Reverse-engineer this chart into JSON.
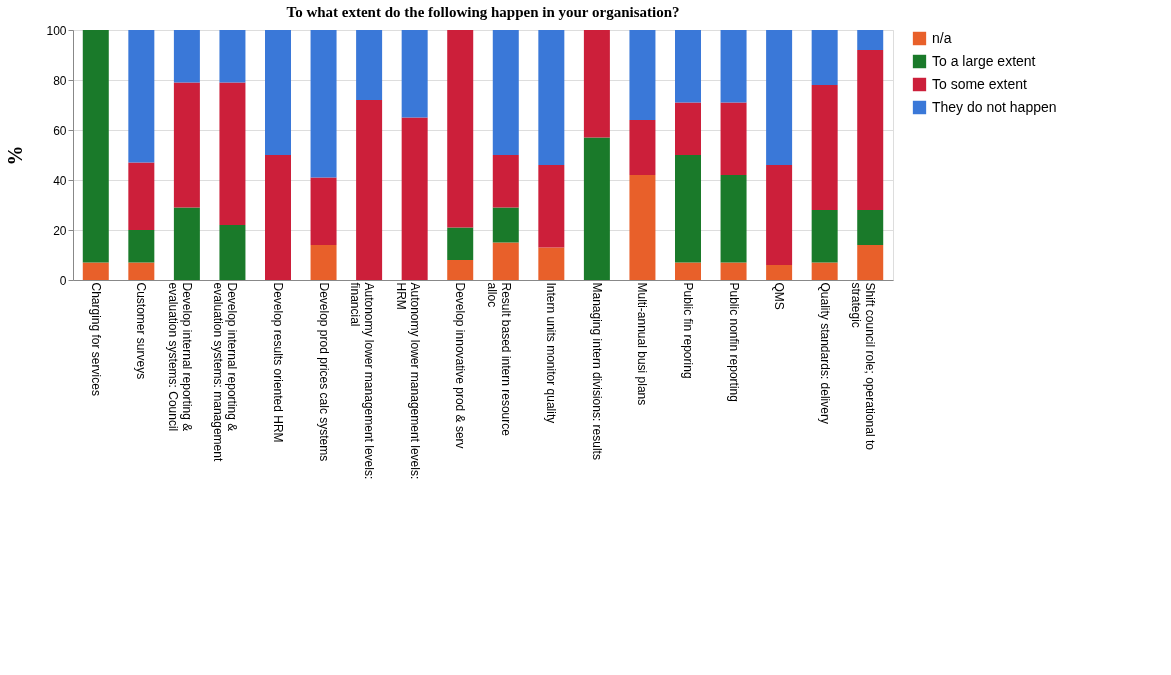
{
  "chart_data": {
    "type": "bar",
    "title": "To what extent do the following happen in your organisation?",
    "ylabel": "%",
    "stacked": true,
    "categories": [
      "Charging for services",
      "Customer surveys",
      "Develop internal reporting & evaluation systems: Council",
      "Develop internal reporting & evaluation systems: management",
      "Develop results oriented HRM",
      "Develop prod prices calc systems",
      "Autonomy lower management levels: financial",
      "Autonomy lower management levels: HRM",
      "Develop innovative prod & serv",
      "Result based intern resource alloc",
      "Intern units monitor quality",
      "Managing intern divisions: results",
      "Multi-annual busi plans",
      "Public fin reporing",
      "Public nonfin reporting",
      "QMS",
      "Quality standards: delivery",
      "Shift council role; operational to strategic"
    ],
    "series": [
      {
        "name": "n/a",
        "color": "#e8602a",
        "values": [
          7,
          7,
          0,
          0,
          0,
          14,
          0,
          0,
          8,
          15,
          13,
          0,
          42,
          7,
          7,
          6,
          7,
          14
        ]
      },
      {
        "name": "To a large extent",
        "color": "#1a7a2a",
        "values": [
          93,
          13,
          29,
          22,
          0,
          0,
          0,
          0,
          13,
          14,
          0,
          57,
          0,
          43,
          35,
          0,
          21,
          14
        ]
      },
      {
        "name": "To some extent",
        "color": "#cc1f3a",
        "values": [
          0,
          27,
          50,
          57,
          50,
          27,
          72,
          65,
          79,
          21,
          33,
          43,
          22,
          21,
          29,
          40,
          50,
          64
        ]
      },
      {
        "name": "They do not happen",
        "color": "#3a78d8",
        "values": [
          0,
          53,
          21,
          21,
          50,
          59,
          28,
          35,
          0,
          50,
          54,
          0,
          36,
          29,
          29,
          54,
          22,
          8
        ]
      }
    ],
    "ylim": [
      0,
      100
    ],
    "yticks": [
      0,
      20,
      40,
      60,
      80,
      100
    ],
    "grid": "y",
    "legend": "top right"
  }
}
